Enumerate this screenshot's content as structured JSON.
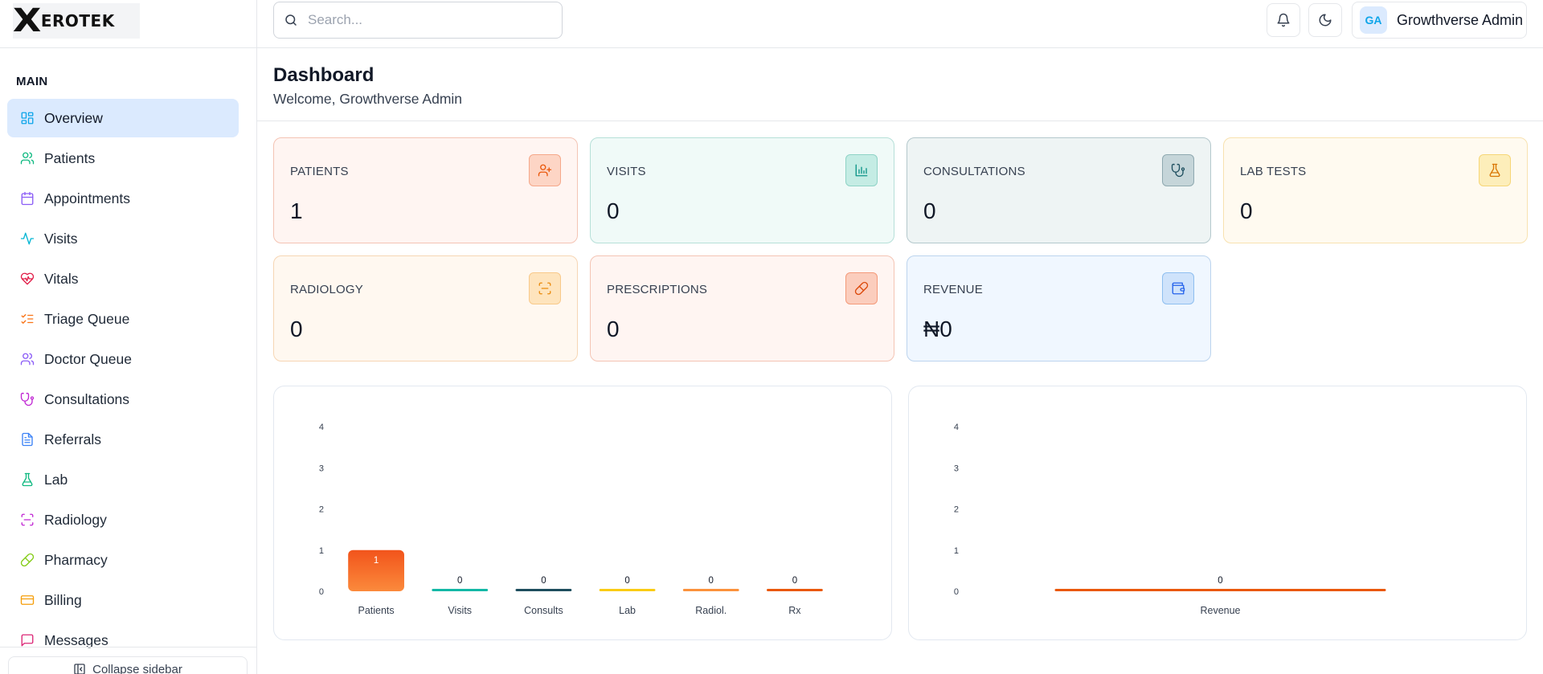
{
  "brand": {
    "logo_letter": "X",
    "logo_text": "EROTEK"
  },
  "sidebar": {
    "section_title": "MAIN",
    "items": [
      {
        "label": "Overview",
        "icon": "grid-icon",
        "color": "#0ea5e9",
        "active": true
      },
      {
        "label": "Patients",
        "icon": "users-icon",
        "color": "#10b981"
      },
      {
        "label": "Appointments",
        "icon": "calendar-icon",
        "color": "#8b5cf6"
      },
      {
        "label": "Visits",
        "icon": "activity-icon",
        "color": "#06b6d4"
      },
      {
        "label": "Vitals",
        "icon": "heart-pulse-icon",
        "color": "#e11d48"
      },
      {
        "label": "Triage Queue",
        "icon": "list-checks-icon",
        "color": "#f97316"
      },
      {
        "label": "Doctor Queue",
        "icon": "user-group-icon",
        "color": "#8b5cf6"
      },
      {
        "label": "Consultations",
        "icon": "stethoscope-icon",
        "color": "#c026d3"
      },
      {
        "label": "Referrals",
        "icon": "file-text-icon",
        "color": "#3b82f6"
      },
      {
        "label": "Lab",
        "icon": "flask-icon",
        "color": "#10b981"
      },
      {
        "label": "Radiology",
        "icon": "scan-icon",
        "color": "#c026d3"
      },
      {
        "label": "Pharmacy",
        "icon": "pill-icon",
        "color": "#84cc16"
      },
      {
        "label": "Billing",
        "icon": "credit-card-icon",
        "color": "#f59e0b"
      },
      {
        "label": "Messages",
        "icon": "message-square-icon",
        "color": "#db2777"
      }
    ],
    "collapse_label": "Collapse sidebar"
  },
  "topbar": {
    "search_placeholder": "Search...",
    "user_initials": "GA",
    "user_name": "Growthverse Admin"
  },
  "page": {
    "title": "Dashboard",
    "subtitle": "Welcome, Growthverse Admin"
  },
  "stats": [
    {
      "label": "PATIENTS",
      "value": "1",
      "icon": "user-plus-icon",
      "bg": "#fff5f2",
      "border": "#f4c4b4",
      "badge_bg": "#fdd5c5",
      "badge_border": "#f5a88a",
      "icon_color": "#ea580c"
    },
    {
      "label": "VISITS",
      "value": "0",
      "icon": "bar-chart-icon",
      "bg": "#f0faf8",
      "border": "#b6e0d8",
      "badge_bg": "#c4ece4",
      "badge_border": "#8fd3c6",
      "icon_color": "#0d9488"
    },
    {
      "label": "CONSULTATIONS",
      "value": "0",
      "icon": "stethoscope-icon",
      "bg": "#eef4f4",
      "border": "#b4c8cc",
      "badge_bg": "#c5d5d9",
      "badge_border": "#8fa9b0",
      "icon_color": "#1e4e5e"
    },
    {
      "label": "LAB TESTS",
      "value": "0",
      "icon": "flask-icon",
      "bg": "#fffaf0",
      "border": "#f8e2b0",
      "badge_bg": "#fdeeba",
      "badge_border": "#f6d677",
      "icon_color": "#d97706"
    },
    {
      "label": "RADIOLOGY",
      "value": "0",
      "icon": "scan-icon",
      "bg": "#fff8f0",
      "border": "#f6d6b4",
      "badge_bg": "#fee4bd",
      "badge_border": "#f8c98a",
      "icon_color": "#ea8a0c"
    },
    {
      "label": "PRESCRIPTIONS",
      "value": "0",
      "icon": "pill-icon",
      "bg": "#fff5f2",
      "border": "#f4c4b4",
      "badge_bg": "#fbcdbd",
      "badge_border": "#f49a7a",
      "icon_color": "#dc4a0c"
    },
    {
      "label": "REVENUE",
      "value": "₦0",
      "icon": "wallet-icon",
      "bg": "#f0f7ff",
      "border": "#bcd4ee",
      "badge_bg": "#cfe3fb",
      "badge_border": "#8fbff0",
      "icon_color": "#2563eb"
    }
  ],
  "charts": {
    "chart_data": [
      {
        "type": "bar",
        "categories": [
          "Patients",
          "Visits",
          "Consults",
          "Lab",
          "Radiol.",
          "Rx"
        ],
        "values": [
          1,
          0,
          0,
          0,
          0,
          0
        ],
        "colors": [
          "#f26a2a",
          "#14b8a6",
          "#1e4e5e",
          "#facc15",
          "#fb923c",
          "#ea580c"
        ],
        "ylim": [
          0,
          4
        ],
        "yticks": [
          "0",
          "1",
          "2",
          "3",
          "4"
        ],
        "data_labels": [
          "1",
          "0",
          "0",
          "0",
          "0",
          "0"
        ]
      },
      {
        "type": "bar",
        "categories": [
          "Revenue"
        ],
        "values": [
          0
        ],
        "colors": [
          "#ea580c"
        ],
        "ylim": [
          0,
          4
        ],
        "yticks": [
          "0",
          "1",
          "2",
          "3",
          "4"
        ],
        "data_labels": [
          "0"
        ]
      }
    ]
  }
}
